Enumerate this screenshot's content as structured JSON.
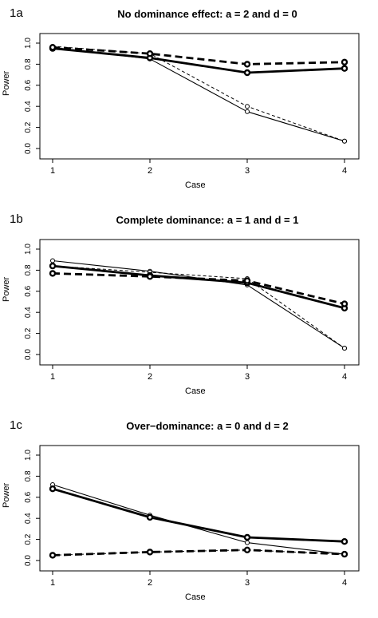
{
  "chart_data": [
    {
      "type": "line",
      "tag": "1a",
      "title": "No dominance effect: a = 2 and d = 0",
      "xlabel": "Case",
      "ylabel": "Power",
      "categories": [
        "1",
        "2",
        "3",
        "4"
      ],
      "x": [
        1,
        2,
        3,
        4
      ],
      "ylim": [
        0,
        1
      ],
      "yticks": [
        "0.0",
        "0.2",
        "0.4",
        "0.6",
        "0.8",
        "1.0"
      ],
      "series": [
        {
          "style": "thin-solid",
          "values": [
            0.96,
            0.85,
            0.35,
            0.07
          ]
        },
        {
          "style": "thin-dashed",
          "values": [
            0.97,
            0.9,
            0.4,
            0.07
          ]
        },
        {
          "style": "thick-solid",
          "values": [
            0.95,
            0.86,
            0.72,
            0.76
          ]
        },
        {
          "style": "thick-dashed",
          "values": [
            0.96,
            0.9,
            0.8,
            0.82
          ]
        }
      ]
    },
    {
      "type": "line",
      "tag": "1b",
      "title": "Complete dominance: a = 1 and d = 1",
      "xlabel": "Case",
      "ylabel": "Power",
      "categories": [
        "1",
        "2",
        "3",
        "4"
      ],
      "x": [
        1,
        2,
        3,
        4
      ],
      "ylim": [
        0,
        1
      ],
      "yticks": [
        "0.0",
        "0.2",
        "0.4",
        "0.6",
        "0.8",
        "1.0"
      ],
      "series": [
        {
          "style": "thin-solid",
          "values": [
            0.89,
            0.79,
            0.66,
            0.06
          ]
        },
        {
          "style": "thin-dashed",
          "values": [
            0.84,
            0.78,
            0.72,
            0.06
          ]
        },
        {
          "style": "thick-solid",
          "values": [
            0.84,
            0.75,
            0.68,
            0.44
          ]
        },
        {
          "style": "thick-dashed",
          "values": [
            0.77,
            0.74,
            0.7,
            0.48
          ]
        }
      ]
    },
    {
      "type": "line",
      "tag": "1c",
      "title": "Over−dominance: a = 0 and d = 2",
      "xlabel": "Case",
      "ylabel": "Power",
      "categories": [
        "1",
        "2",
        "3",
        "4"
      ],
      "x": [
        1,
        2,
        3,
        4
      ],
      "ylim": [
        0,
        1
      ],
      "yticks": [
        "0.0",
        "0.2",
        "0.4",
        "0.6",
        "0.8",
        "1.0"
      ],
      "series": [
        {
          "style": "thin-solid",
          "values": [
            0.72,
            0.43,
            0.17,
            0.06
          ]
        },
        {
          "style": "thin-dashed",
          "values": [
            0.05,
            0.08,
            0.1,
            0.06
          ]
        },
        {
          "style": "thick-solid",
          "values": [
            0.68,
            0.41,
            0.22,
            0.18
          ]
        },
        {
          "style": "thick-dashed",
          "values": [
            0.05,
            0.08,
            0.1,
            0.06
          ]
        }
      ]
    }
  ]
}
